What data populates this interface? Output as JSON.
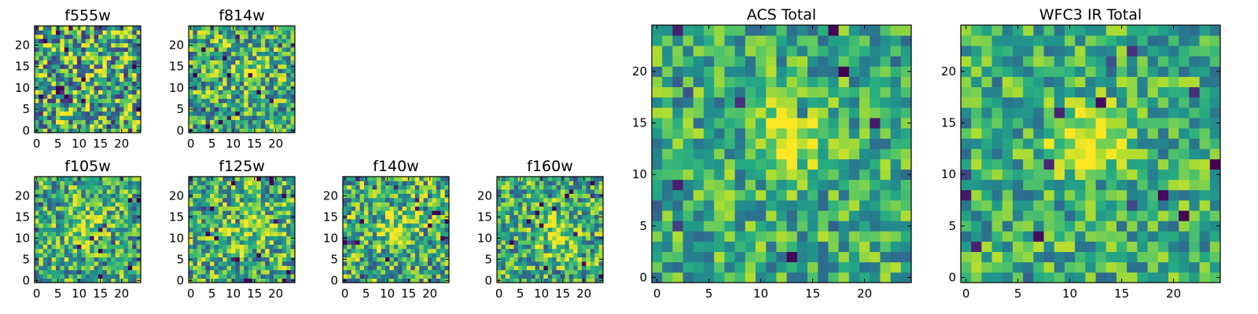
{
  "chart_data": [
    {
      "type": "heatmap",
      "title": "f555w",
      "grid_size": 25,
      "xlim": [
        -0.5,
        24.5
      ],
      "ylim": [
        -0.5,
        24.5
      ],
      "xticks": [
        0,
        5,
        10,
        15,
        20
      ],
      "yticks": [
        0,
        5,
        10,
        15,
        20
      ],
      "colormap": "viridis",
      "noise": 0.95,
      "source": null,
      "seed": 11
    },
    {
      "type": "heatmap",
      "title": "f814w",
      "grid_size": 25,
      "xlim": [
        -0.5,
        24.5
      ],
      "ylim": [
        -0.5,
        24.5
      ],
      "xticks": [
        0,
        5,
        10,
        15,
        20
      ],
      "yticks": [
        0,
        5,
        10,
        15,
        20
      ],
      "colormap": "viridis",
      "noise": 0.75,
      "source": {
        "x": 13,
        "y": 13,
        "amplitude": 0.35,
        "sigma": 2.2
      },
      "seed": 23
    },
    {
      "type": "heatmap",
      "title": "f105w",
      "grid_size": 25,
      "xlim": [
        -0.5,
        24.5
      ],
      "ylim": [
        -0.5,
        24.5
      ],
      "xticks": [
        0,
        5,
        10,
        15,
        20
      ],
      "yticks": [
        0,
        5,
        10,
        15,
        20
      ],
      "colormap": "viridis",
      "noise": 0.7,
      "source": {
        "x": 11,
        "y": 13,
        "amplitude": 0.3,
        "sigma": 3
      },
      "seed": 37
    },
    {
      "type": "heatmap",
      "title": "f125w",
      "grid_size": 25,
      "xlim": [
        -0.5,
        24.5
      ],
      "ylim": [
        -0.5,
        24.5
      ],
      "xticks": [
        0,
        5,
        10,
        15,
        20
      ],
      "yticks": [
        0,
        5,
        10,
        15,
        20
      ],
      "colormap": "viridis",
      "noise": 0.75,
      "source": {
        "x": 13,
        "y": 12,
        "amplitude": 0.25,
        "sigma": 3
      },
      "seed": 41
    },
    {
      "type": "heatmap",
      "title": "f140w",
      "grid_size": 25,
      "xlim": [
        -0.5,
        24.5
      ],
      "ylim": [
        -0.5,
        24.5
      ],
      "xticks": [
        0,
        5,
        10,
        15,
        20
      ],
      "yticks": [
        0,
        5,
        10,
        15,
        20
      ],
      "colormap": "viridis",
      "noise": 0.75,
      "source": {
        "x": 12,
        "y": 12,
        "amplitude": 0.3,
        "sigma": 3
      },
      "seed": 53
    },
    {
      "type": "heatmap",
      "title": "f160w",
      "grid_size": 25,
      "xlim": [
        -0.5,
        24.5
      ],
      "ylim": [
        -0.5,
        24.5
      ],
      "xticks": [
        0,
        5,
        10,
        15,
        20
      ],
      "yticks": [
        0,
        5,
        10,
        15,
        20
      ],
      "colormap": "viridis",
      "noise": 0.7,
      "source": {
        "x": 14,
        "y": 11,
        "amplitude": 0.35,
        "sigma": 3
      },
      "seed": 67
    },
    {
      "type": "heatmap",
      "title": "ACS Total",
      "grid_size": 25,
      "xlim": [
        -0.5,
        24.5
      ],
      "ylim": [
        -0.5,
        24.5
      ],
      "xticks": [
        0,
        5,
        10,
        15,
        20
      ],
      "yticks": [
        0,
        5,
        10,
        15,
        20
      ],
      "colormap": "viridis",
      "noise": 0.55,
      "source": {
        "x": 13,
        "y": 14,
        "amplitude": 0.45,
        "sigma": 2.2
      },
      "seed": 79
    },
    {
      "type": "heatmap",
      "title": "WFC3 IR Total",
      "grid_size": 25,
      "xlim": [
        -0.5,
        24.5
      ],
      "ylim": [
        -0.5,
        24.5
      ],
      "xticks": [
        0,
        5,
        10,
        15,
        20
      ],
      "yticks": [
        0,
        5,
        10,
        15,
        20
      ],
      "colormap": "viridis",
      "noise": 0.55,
      "source": {
        "x": 12,
        "y": 13,
        "amplitude": 0.45,
        "sigma": 2.6
      },
      "seed": 97
    }
  ]
}
